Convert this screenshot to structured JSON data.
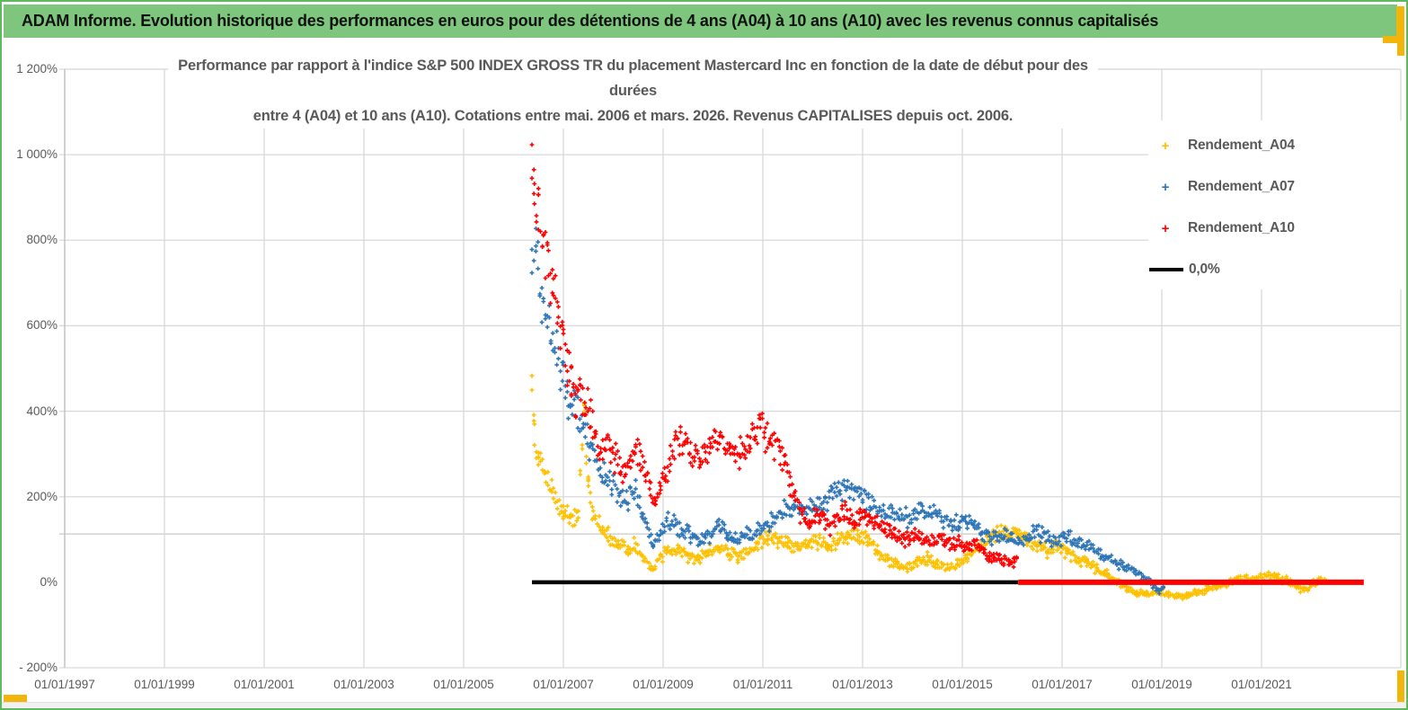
{
  "banner": {
    "title": "ADAM Informe. Evolution historique des performances en euros pour des détentions de 4 ans (A04) à 10 ans (A10) avec les revenus connus capitalisés",
    "bg_color": "#7ec67e",
    "accent_color": "#f2b50b"
  },
  "chart_data": {
    "type": "scatter",
    "title_line1": "Performance par rapport à l'indice S&P 500 INDEX GROSS TR  du placement Mastercard Inc en fonction de la date de début pour des durées",
    "title_line2": "entre 4 (A04) et 10 ans (A10). Cotations entre mai. 2006 et mars. 2026. Revenus CAPITALISES depuis oct. 2006.",
    "grid": true,
    "legend_position": "right-top",
    "y_axis": {
      "unit": "%",
      "min": -200,
      "max": 1200,
      "tick_values": [
        1200,
        1000,
        800,
        600,
        400,
        200,
        0,
        -200
      ],
      "tick_labels": [
        "1 200%",
        "1 000%",
        "800%",
        "600%",
        "400%",
        "200%",
        "0%",
        "- 200%"
      ],
      "gridline_skip_values": [
        0
      ],
      "unlabeled_gridline_value": 113
    },
    "x_axis": {
      "min_year": 1997.0,
      "max_year": 2023.9,
      "tick_years": [
        1997,
        1999,
        2001,
        2003,
        2005,
        2007,
        2009,
        2011,
        2013,
        2015,
        2017,
        2019,
        2021
      ],
      "tick_labels": [
        "01/01/1997",
        "01/01/1999",
        "01/01/2001",
        "01/01/2003",
        "01/01/2005",
        "01/01/2007",
        "01/01/2009",
        "01/01/2011",
        "01/01/2013",
        "01/01/2015",
        "01/01/2017",
        "01/01/2019",
        "01/01/2021"
      ]
    },
    "legend": [
      {
        "label": "Rendement_A04",
        "color": "#FFC000",
        "marker": "plus"
      },
      {
        "label": "Rendement_A07",
        "color": "#2E75B6",
        "marker": "plus"
      },
      {
        "label": "Rendement_A10",
        "color": "#FF0000",
        "marker": "plus"
      },
      {
        "label": "0,0%",
        "color": "#000000",
        "marker": "line"
      }
    ],
    "series": [
      {
        "name": "Rendement_A04",
        "color": "#FFC000",
        "points": [
          [
            2006.37,
            430
          ],
          [
            2006.42,
            340
          ],
          [
            2006.5,
            295
          ],
          [
            2006.65,
            252
          ],
          [
            2006.8,
            210
          ],
          [
            2007.0,
            168
          ],
          [
            2007.15,
            152
          ],
          [
            2007.3,
            165
          ],
          [
            2007.42,
            400
          ],
          [
            2007.5,
            230
          ],
          [
            2007.6,
            150
          ],
          [
            2007.75,
            128
          ],
          [
            2007.9,
            108
          ],
          [
            2008.1,
            94
          ],
          [
            2008.3,
            74
          ],
          [
            2008.45,
            90
          ],
          [
            2008.6,
            55
          ],
          [
            2008.8,
            34
          ],
          [
            2008.95,
            55
          ],
          [
            2009.1,
            80
          ],
          [
            2009.3,
            70
          ],
          [
            2009.5,
            62
          ],
          [
            2009.7,
            55
          ],
          [
            2009.9,
            70
          ],
          [
            2010.1,
            85
          ],
          [
            2010.3,
            70
          ],
          [
            2010.5,
            60
          ],
          [
            2010.7,
            76
          ],
          [
            2010.9,
            95
          ],
          [
            2011.1,
            108
          ],
          [
            2011.3,
            100
          ],
          [
            2011.5,
            88
          ],
          [
            2011.7,
            80
          ],
          [
            2011.9,
            88
          ],
          [
            2012.1,
            95
          ],
          [
            2012.3,
            88
          ],
          [
            2012.5,
            96
          ],
          [
            2012.7,
            106
          ],
          [
            2012.9,
            112
          ],
          [
            2013.1,
            98
          ],
          [
            2013.3,
            70
          ],
          [
            2013.5,
            52
          ],
          [
            2013.7,
            42
          ],
          [
            2013.9,
            38
          ],
          [
            2014.1,
            48
          ],
          [
            2014.3,
            56
          ],
          [
            2014.5,
            42
          ],
          [
            2014.7,
            34
          ],
          [
            2014.9,
            42
          ],
          [
            2015.1,
            60
          ],
          [
            2015.3,
            80
          ],
          [
            2015.5,
            100
          ],
          [
            2015.7,
            116
          ],
          [
            2015.9,
            108
          ],
          [
            2016.1,
            120
          ],
          [
            2016.3,
            104
          ],
          [
            2016.5,
            88
          ],
          [
            2016.7,
            74
          ],
          [
            2016.9,
            86
          ],
          [
            2017.1,
            70
          ],
          [
            2017.3,
            55
          ],
          [
            2017.5,
            45
          ],
          [
            2017.7,
            30
          ],
          [
            2017.9,
            18
          ],
          [
            2018.1,
            4
          ],
          [
            2018.3,
            -16
          ],
          [
            2018.5,
            -26
          ],
          [
            2018.7,
            -30
          ],
          [
            2018.9,
            -22
          ],
          [
            2019.1,
            -28
          ],
          [
            2019.3,
            -34
          ],
          [
            2019.5,
            -30
          ],
          [
            2019.7,
            -24
          ],
          [
            2019.9,
            -16
          ],
          [
            2020.1,
            -8
          ],
          [
            2020.3,
            -4
          ],
          [
            2020.5,
            6
          ],
          [
            2020.7,
            10
          ],
          [
            2020.9,
            4
          ],
          [
            2021.1,
            16
          ],
          [
            2021.3,
            10
          ],
          [
            2021.5,
            4
          ],
          [
            2021.7,
            -12
          ],
          [
            2021.85,
            -20
          ],
          [
            2022.0,
            -4
          ],
          [
            2022.15,
            2
          ],
          [
            2022.3,
            0
          ]
        ]
      },
      {
        "name": "Rendement_A07",
        "color": "#2E75B6",
        "points": [
          [
            2006.37,
            780
          ],
          [
            2006.45,
            745
          ],
          [
            2006.6,
            665
          ],
          [
            2006.75,
            595
          ],
          [
            2006.9,
            530
          ],
          [
            2007.0,
            480
          ],
          [
            2007.1,
            432
          ],
          [
            2007.25,
            395
          ],
          [
            2007.4,
            360
          ],
          [
            2007.55,
            320
          ],
          [
            2007.7,
            272
          ],
          [
            2007.85,
            246
          ],
          [
            2008.0,
            226
          ],
          [
            2008.15,
            206
          ],
          [
            2008.3,
            196
          ],
          [
            2008.45,
            226
          ],
          [
            2008.6,
            150
          ],
          [
            2008.8,
            86
          ],
          [
            2008.95,
            120
          ],
          [
            2009.1,
            150
          ],
          [
            2009.25,
            135
          ],
          [
            2009.4,
            120
          ],
          [
            2009.55,
            110
          ],
          [
            2009.7,
            100
          ],
          [
            2009.85,
            96
          ],
          [
            2010.0,
            116
          ],
          [
            2010.15,
            130
          ],
          [
            2010.3,
            110
          ],
          [
            2010.45,
            96
          ],
          [
            2010.6,
            106
          ],
          [
            2010.75,
            112
          ],
          [
            2010.9,
            120
          ],
          [
            2011.05,
            132
          ],
          [
            2011.2,
            145
          ],
          [
            2011.35,
            158
          ],
          [
            2011.5,
            172
          ],
          [
            2011.65,
            182
          ],
          [
            2011.8,
            165
          ],
          [
            2011.95,
            172
          ],
          [
            2012.1,
            180
          ],
          [
            2012.25,
            192
          ],
          [
            2012.4,
            205
          ],
          [
            2012.55,
            218
          ],
          [
            2012.7,
            232
          ],
          [
            2012.85,
            222
          ],
          [
            2013.0,
            205
          ],
          [
            2013.15,
            186
          ],
          [
            2013.3,
            172
          ],
          [
            2013.45,
            162
          ],
          [
            2013.6,
            172
          ],
          [
            2013.75,
            158
          ],
          [
            2013.9,
            150
          ],
          [
            2014.05,
            162
          ],
          [
            2014.2,
            176
          ],
          [
            2014.35,
            165
          ],
          [
            2014.5,
            155
          ],
          [
            2014.65,
            140
          ],
          [
            2014.8,
            132
          ],
          [
            2014.95,
            140
          ],
          [
            2015.1,
            148
          ],
          [
            2015.25,
            132
          ],
          [
            2015.4,
            118
          ],
          [
            2015.55,
            108
          ],
          [
            2015.7,
            100
          ],
          [
            2015.85,
            112
          ],
          [
            2016.0,
            105
          ],
          [
            2016.15,
            95
          ],
          [
            2016.3,
            108
          ],
          [
            2016.45,
            118
          ],
          [
            2016.6,
            110
          ],
          [
            2016.75,
            100
          ],
          [
            2016.9,
            95
          ],
          [
            2017.05,
            108
          ],
          [
            2017.2,
            100
          ],
          [
            2017.35,
            92
          ],
          [
            2017.5,
            85
          ],
          [
            2017.65,
            78
          ],
          [
            2017.8,
            65
          ],
          [
            2017.95,
            52
          ],
          [
            2018.1,
            45
          ],
          [
            2018.25,
            38
          ],
          [
            2018.4,
            28
          ],
          [
            2018.55,
            18
          ],
          [
            2018.7,
            8
          ],
          [
            2018.85,
            -8
          ],
          [
            2018.95,
            -20
          ],
          [
            2019.05,
            -14
          ]
        ]
      },
      {
        "name": "Rendement_A10",
        "color": "#FF0000",
        "points": [
          [
            2006.37,
            940
          ],
          [
            2006.42,
            905
          ],
          [
            2006.5,
            870
          ],
          [
            2006.6,
            800
          ],
          [
            2006.7,
            742
          ],
          [
            2006.8,
            690
          ],
          [
            2006.9,
            630
          ],
          [
            2007.0,
            570
          ],
          [
            2007.08,
            512
          ],
          [
            2007.16,
            462
          ],
          [
            2007.25,
            430
          ],
          [
            2007.35,
            458
          ],
          [
            2007.45,
            420
          ],
          [
            2007.55,
            380
          ],
          [
            2007.65,
            332
          ],
          [
            2007.75,
            305
          ],
          [
            2007.85,
            330
          ],
          [
            2007.95,
            310
          ],
          [
            2008.05,
            290
          ],
          [
            2008.15,
            272
          ],
          [
            2008.25,
            262
          ],
          [
            2008.35,
            288
          ],
          [
            2008.45,
            325
          ],
          [
            2008.55,
            300
          ],
          [
            2008.65,
            255
          ],
          [
            2008.75,
            215
          ],
          [
            2008.85,
            180
          ],
          [
            2008.95,
            212
          ],
          [
            2009.05,
            250
          ],
          [
            2009.15,
            290
          ],
          [
            2009.25,
            320
          ],
          [
            2009.35,
            340
          ],
          [
            2009.45,
            325
          ],
          [
            2009.55,
            305
          ],
          [
            2009.65,
            290
          ],
          [
            2009.75,
            296
          ],
          [
            2009.85,
            310
          ],
          [
            2009.95,
            325
          ],
          [
            2010.05,
            340
          ],
          [
            2010.15,
            350
          ],
          [
            2010.25,
            330
          ],
          [
            2010.35,
            300
          ],
          [
            2010.45,
            286
          ],
          [
            2010.55,
            305
          ],
          [
            2010.65,
            320
          ],
          [
            2010.75,
            335
          ],
          [
            2010.85,
            352
          ],
          [
            2010.95,
            372
          ],
          [
            2011.05,
            342
          ],
          [
            2011.15,
            318
          ],
          [
            2011.25,
            330
          ],
          [
            2011.35,
            305
          ],
          [
            2011.45,
            275
          ],
          [
            2011.55,
            230
          ],
          [
            2011.65,
            190
          ],
          [
            2011.75,
            160
          ],
          [
            2011.85,
            146
          ],
          [
            2011.95,
            136
          ],
          [
            2012.05,
            150
          ],
          [
            2012.15,
            162
          ],
          [
            2012.25,
            148
          ],
          [
            2012.35,
            132
          ],
          [
            2012.45,
            142
          ],
          [
            2012.55,
            156
          ],
          [
            2012.65,
            168
          ],
          [
            2012.75,
            152
          ],
          [
            2012.85,
            140
          ],
          [
            2012.95,
            148
          ],
          [
            2013.05,
            158
          ],
          [
            2013.15,
            150
          ],
          [
            2013.25,
            140
          ],
          [
            2013.35,
            132
          ],
          [
            2013.45,
            122
          ],
          [
            2013.55,
            112
          ],
          [
            2013.65,
            118
          ],
          [
            2013.75,
            108
          ],
          [
            2013.85,
            100
          ],
          [
            2013.95,
            108
          ],
          [
            2014.05,
            115
          ],
          [
            2014.15,
            108
          ],
          [
            2014.25,
            100
          ],
          [
            2014.35,
            95
          ],
          [
            2014.45,
            102
          ],
          [
            2014.55,
            108
          ],
          [
            2014.65,
            100
          ],
          [
            2014.75,
            92
          ],
          [
            2014.85,
            88
          ],
          [
            2014.95,
            95
          ],
          [
            2015.05,
            88
          ],
          [
            2015.15,
            80
          ],
          [
            2015.25,
            88
          ],
          [
            2015.35,
            78
          ],
          [
            2015.45,
            68
          ],
          [
            2015.55,
            58
          ],
          [
            2015.65,
            52
          ],
          [
            2015.75,
            58
          ],
          [
            2015.85,
            50
          ],
          [
            2015.95,
            45
          ],
          [
            2016.05,
            50
          ],
          [
            2016.12,
            48
          ]
        ]
      }
    ],
    "zero_lines": [
      {
        "label": "0,0%",
        "color": "#000000",
        "value": 0,
        "from_year": 2006.37,
        "to_year": 2016.12,
        "stroke": 4.5
      },
      {
        "label": "",
        "series": "Rendement_A10",
        "color": "#FF0000",
        "value": 0,
        "from_year": 2016.12,
        "to_year": 2023.05,
        "stroke": 6
      }
    ]
  }
}
